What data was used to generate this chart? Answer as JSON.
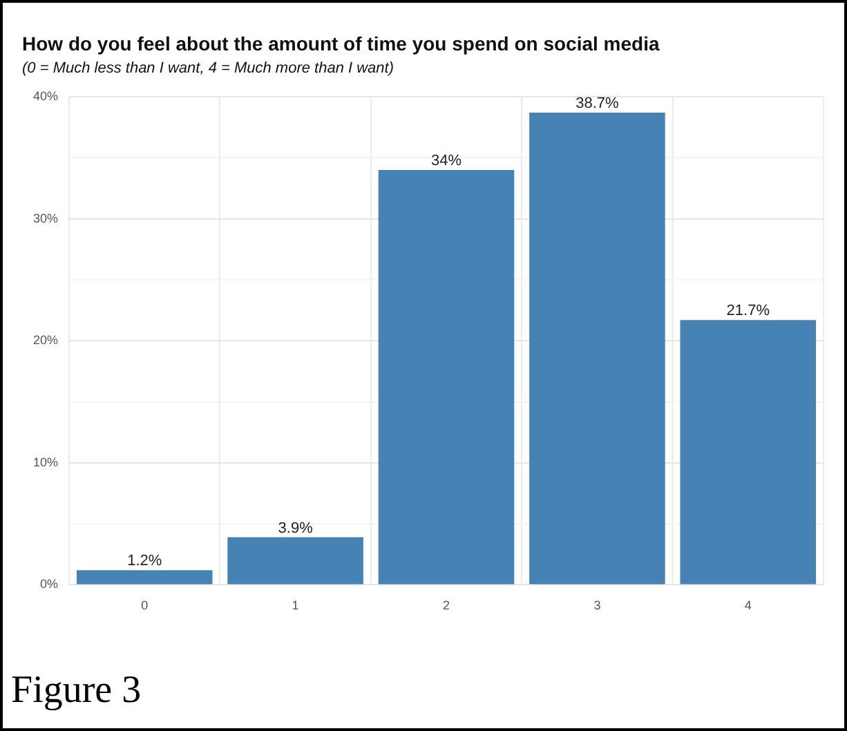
{
  "chart_data": {
    "type": "bar",
    "title": "How do you feel about the amount of time you spend on social media",
    "subtitle": "(0 = Much less than I want, 4 = Much more than I want)",
    "categories": [
      "0",
      "1",
      "2",
      "3",
      "4"
    ],
    "values": [
      1.2,
      3.9,
      34,
      38.7,
      21.7
    ],
    "value_labels": [
      "1.2%",
      "3.9%",
      "34%",
      "38.7%",
      "21.7%"
    ],
    "color": "#4682b4",
    "ylim": [
      0,
      40
    ],
    "yticks": [
      {
        "value": 0,
        "label": "0%"
      },
      {
        "value": 5,
        "label": null
      },
      {
        "value": 10,
        "label": "10%"
      },
      {
        "value": 15,
        "label": null
      },
      {
        "value": 20,
        "label": "20%"
      },
      {
        "value": 25,
        "label": null
      },
      {
        "value": 30,
        "label": "30%"
      },
      {
        "value": 35,
        "label": null
      },
      {
        "value": 40,
        "label": "40%"
      }
    ],
    "grid": true,
    "annotations": [
      "Figure 3"
    ]
  }
}
